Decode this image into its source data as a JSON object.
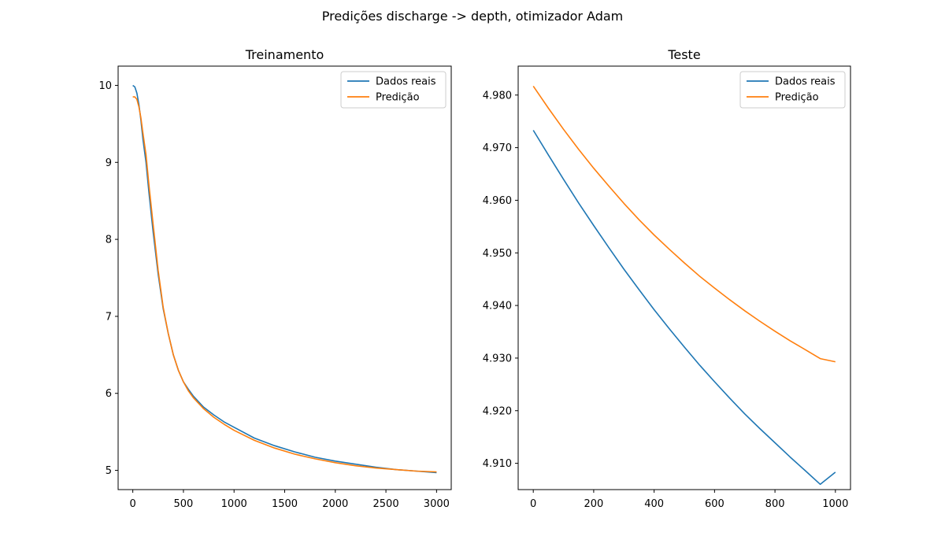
{
  "figure": {
    "suptitle": "Predições discharge -> depth, otimizador Adam",
    "colors": {
      "real": "#1f77b4",
      "pred": "#ff7f0e"
    }
  },
  "chart_data": [
    {
      "type": "line",
      "title": "Treinamento",
      "xlabel": "",
      "ylabel": "",
      "xlim": [
        -145,
        3145
      ],
      "ylim": [
        4.75,
        10.25
      ],
      "xticks": [
        0,
        500,
        1000,
        1500,
        2000,
        2500,
        3000
      ],
      "xtick_labels": [
        "0",
        "500",
        "1000",
        "1500",
        "2000",
        "2500",
        "3000"
      ],
      "yticks": [
        5,
        6,
        7,
        8,
        9,
        10
      ],
      "ytick_labels": [
        "5",
        "6",
        "7",
        "8",
        "9",
        "10"
      ],
      "grid": false,
      "legend_position": "upper right",
      "series": [
        {
          "name": "Dados reais",
          "color": "#1f77b4",
          "x": [
            0,
            20,
            40,
            60,
            80,
            100,
            130,
            160,
            200,
            250,
            300,
            350,
            400,
            450,
            500,
            550,
            600,
            700,
            800,
            900,
            1000,
            1200,
            1400,
            1600,
            1800,
            2000,
            2200,
            2400,
            2600,
            2800,
            3000
          ],
          "y": [
            10.0,
            9.98,
            9.9,
            9.75,
            9.55,
            9.3,
            9.0,
            8.6,
            8.1,
            7.55,
            7.1,
            6.78,
            6.5,
            6.3,
            6.15,
            6.05,
            5.96,
            5.82,
            5.72,
            5.63,
            5.56,
            5.42,
            5.32,
            5.24,
            5.17,
            5.12,
            5.08,
            5.04,
            5.01,
            4.99,
            4.97
          ]
        },
        {
          "name": "Predição",
          "color": "#ff7f0e",
          "x": [
            0,
            20,
            40,
            60,
            80,
            100,
            130,
            160,
            200,
            250,
            300,
            350,
            400,
            450,
            500,
            550,
            600,
            700,
            800,
            900,
            1000,
            1200,
            1400,
            1600,
            1800,
            2000,
            2200,
            2400,
            2600,
            2800,
            3000
          ],
          "y": [
            9.85,
            9.85,
            9.82,
            9.72,
            9.58,
            9.38,
            9.1,
            8.7,
            8.2,
            7.6,
            7.12,
            6.78,
            6.5,
            6.3,
            6.15,
            6.03,
            5.94,
            5.8,
            5.69,
            5.6,
            5.52,
            5.39,
            5.29,
            5.21,
            5.15,
            5.1,
            5.06,
            5.03,
            5.01,
            4.99,
            4.98
          ]
        }
      ]
    },
    {
      "type": "line",
      "title": "Teste",
      "xlabel": "",
      "ylabel": "",
      "xlim": [
        -50,
        1050
      ],
      "ylim": [
        4.905,
        4.9855
      ],
      "xticks": [
        0,
        200,
        400,
        600,
        800,
        1000
      ],
      "xtick_labels": [
        "0",
        "200",
        "400",
        "600",
        "800",
        "1000"
      ],
      "yticks": [
        4.91,
        4.92,
        4.93,
        4.94,
        4.95,
        4.96,
        4.97,
        4.98
      ],
      "ytick_labels": [
        "4.910",
        "4.920",
        "4.930",
        "4.940",
        "4.950",
        "4.960",
        "4.970",
        "4.980"
      ],
      "grid": false,
      "legend_position": "upper right",
      "series": [
        {
          "name": "Dados reais",
          "color": "#1f77b4",
          "x": [
            0,
            50,
            100,
            150,
            200,
            250,
            300,
            350,
            400,
            450,
            500,
            550,
            600,
            650,
            700,
            750,
            800,
            850,
            900,
            950,
            1000
          ],
          "y": [
            4.9733,
            4.9686,
            4.964,
            4.9595,
            4.9552,
            4.951,
            4.9469,
            4.943,
            4.9392,
            4.9356,
            4.9321,
            4.9287,
            4.9255,
            4.9224,
            4.9194,
            4.9166,
            4.9139,
            4.9112,
            4.9086,
            4.906,
            4.9083
          ]
        },
        {
          "name": "Predição",
          "color": "#ff7f0e",
          "x": [
            0,
            50,
            100,
            150,
            200,
            250,
            300,
            350,
            400,
            450,
            500,
            550,
            600,
            650,
            700,
            750,
            800,
            850,
            900,
            950,
            1000
          ],
          "y": [
            4.9817,
            4.9775,
            4.9735,
            4.9697,
            4.9661,
            4.9627,
            4.9594,
            4.9563,
            4.9534,
            4.9507,
            4.9481,
            4.9456,
            4.9433,
            4.9411,
            4.939,
            4.937,
            4.9351,
            4.9333,
            4.9316,
            4.9299,
            4.9293
          ]
        }
      ]
    }
  ]
}
